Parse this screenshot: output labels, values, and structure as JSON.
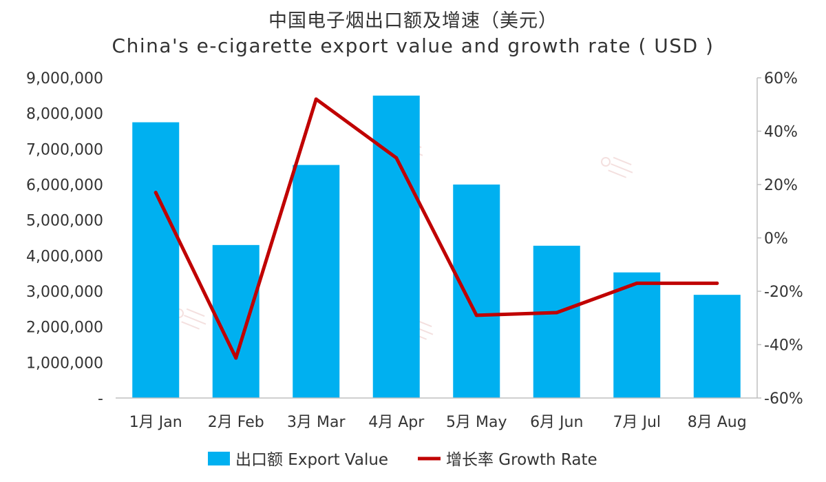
{
  "title_zh": "中国电子烟出口额及增速（美元）",
  "title_en": "China's e-cigarette export value and growth rate ( USD )",
  "chart_data": {
    "type": "bar",
    "categories": [
      "1月 Jan",
      "2月 Feb",
      "3月 Mar",
      "4月 Apr",
      "5月 May",
      "6月 Jun",
      "7月 Jul",
      "8月 Aug"
    ],
    "series": [
      {
        "name": "出口额 Export Value",
        "type": "bar",
        "axis": "left",
        "color": "#00B0F0",
        "values": [
          7750000,
          4300000,
          6550000,
          8500000,
          6000000,
          4280000,
          3530000,
          2900000
        ]
      },
      {
        "name": "增长率 Growth Rate",
        "type": "line",
        "axis": "right",
        "color": "#C00000",
        "values": [
          17,
          -45,
          52,
          30,
          -29,
          -28,
          -17,
          -17
        ]
      }
    ],
    "y_left": {
      "ylim": [
        0,
        9000000
      ],
      "ticks": [
        0,
        1000000,
        2000000,
        3000000,
        4000000,
        5000000,
        6000000,
        7000000,
        8000000,
        9000000
      ],
      "tick_labels": [
        "-",
        "1,000,000",
        "2,000,000",
        "3,000,000",
        "4,000,000",
        "5,000,000",
        "6,000,000",
        "7,000,000",
        "8,000,000",
        "9,000,000"
      ]
    },
    "y_right": {
      "ylim": [
        -60,
        60
      ],
      "ticks": [
        -60,
        -40,
        -20,
        0,
        20,
        40,
        60
      ],
      "tick_labels": [
        "-60%",
        "-40%",
        "-20%",
        "0%",
        "20%",
        "40%",
        "60%"
      ]
    },
    "grid": false,
    "legend": "bottom"
  }
}
